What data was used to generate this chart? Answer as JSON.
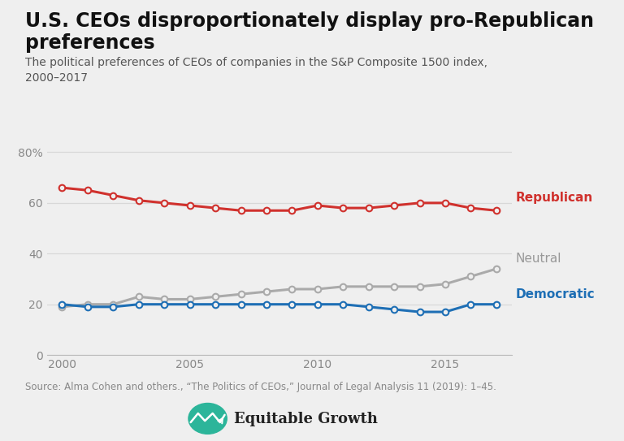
{
  "title": "U.S. CEOs disproportionately display pro-Republican preferences",
  "subtitle": "The political preferences of CEOs of companies in the S&P Composite 1500 index,\n2000–2017",
  "source": "Source: Alma Cohen and others., “The Politics of CEOs,” Journal of Legal Analysis 11 (2019): 1–45.",
  "logo_text": "Equitable Growth",
  "years": [
    2000,
    2001,
    2002,
    2003,
    2004,
    2005,
    2006,
    2007,
    2008,
    2009,
    2010,
    2011,
    2012,
    2013,
    2014,
    2015,
    2016,
    2017
  ],
  "republican": [
    66,
    65,
    63,
    61,
    60,
    59,
    58,
    57,
    57,
    57,
    59,
    58,
    58,
    59,
    60,
    60,
    58,
    57
  ],
  "neutral": [
    19,
    20,
    20,
    23,
    22,
    22,
    23,
    24,
    25,
    26,
    26,
    27,
    27,
    27,
    27,
    28,
    31,
    34
  ],
  "democratic": [
    20,
    19,
    19,
    20,
    20,
    20,
    20,
    20,
    20,
    20,
    20,
    20,
    19,
    18,
    17,
    17,
    20,
    20
  ],
  "republican_color": "#d0312d",
  "neutral_color": "#aaaaaa",
  "neutral_label_color": "#999999",
  "democratic_color": "#1e6fb5",
  "background_color": "#efefef",
  "grid_color": "#d8d8d8",
  "spine_color": "#bbbbbb",
  "tick_color": "#888888",
  "title_color": "#111111",
  "subtitle_color": "#555555",
  "source_color": "#888888",
  "logo_color": "#2cb59a",
  "ylim": [
    0,
    87
  ],
  "yticks": [
    0,
    20,
    40,
    60,
    80
  ],
  "ytick_labels": [
    "0",
    "20",
    "40",
    "60",
    "80%"
  ],
  "xticks": [
    2000,
    2005,
    2010,
    2015
  ],
  "xlim_left": 1999.4,
  "xlim_right": 2017.6,
  "title_fontsize": 17,
  "subtitle_fontsize": 10,
  "axis_fontsize": 10,
  "label_fontsize": 11,
  "source_fontsize": 8.5,
  "logo_fontsize": 13,
  "line_width": 2.2,
  "marker_size": 5.5,
  "marker_edge_width": 1.5
}
